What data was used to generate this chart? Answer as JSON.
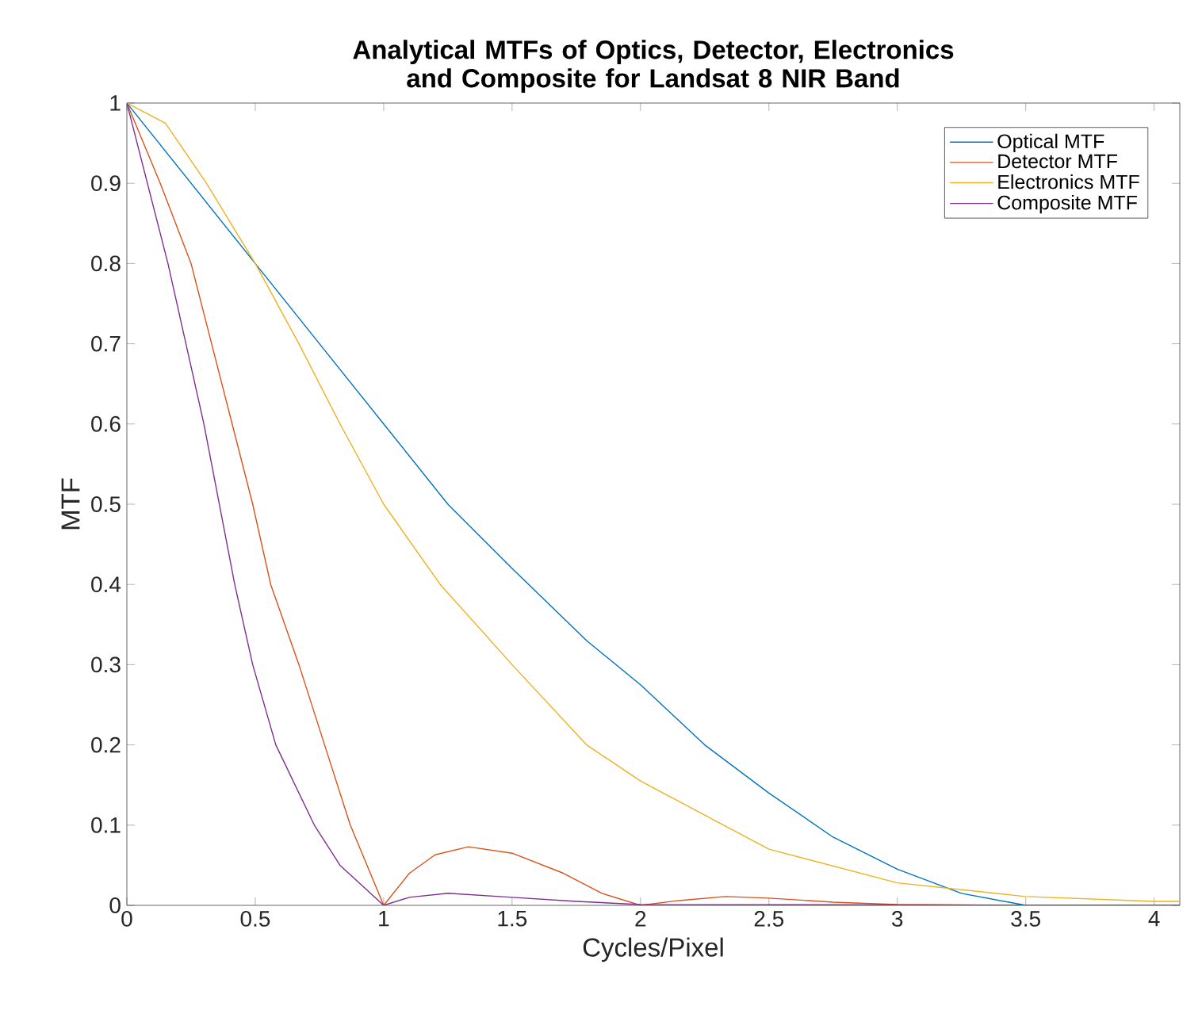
{
  "chart_data": {
    "type": "line",
    "title": "Analytical MTFs of Optics, Detector, Electronics and Composite for Landsat 8 NIR Band",
    "xlabel": "Cycles/Pixel",
    "ylabel": "MTF",
    "xlim": [
      0,
      4.1
    ],
    "ylim": [
      0,
      1
    ],
    "xticks": [
      0,
      0.5,
      1,
      1.5,
      2,
      2.5,
      3,
      3.5,
      4
    ],
    "yticks": [
      0,
      0.1,
      0.2,
      0.3,
      0.4,
      0.5,
      0.6,
      0.7,
      0.8,
      0.9,
      1
    ],
    "grid": false,
    "legend": "top right",
    "marker": "none",
    "line_style": "solid",
    "series": [
      {
        "name": "Optical MTF",
        "color": "#0072bd",
        "x": [
          0,
          0.25,
          0.5,
          0.75,
          1,
          1.25,
          1.5,
          1.79,
          2,
          2.25,
          2.5,
          2.75,
          3,
          3.25,
          3.5,
          4.1
        ],
        "values": [
          1,
          0.9,
          0.8,
          0.7,
          0.6,
          0.5,
          0.42,
          0.33,
          0.275,
          0.2,
          0.14,
          0.085,
          0.045,
          0.015,
          0,
          0
        ]
      },
      {
        "name": "Detector MTF",
        "color": "#d95319",
        "x": [
          0,
          0.13,
          0.25,
          0.33,
          0.41,
          0.49,
          0.56,
          0.67,
          0.77,
          0.87,
          1,
          1.1,
          1.2,
          1.33,
          1.5,
          1.7,
          1.85,
          2,
          2.15,
          2.33,
          2.5,
          2.75,
          3,
          3.5,
          4.1
        ],
        "values": [
          1,
          0.9,
          0.8,
          0.7,
          0.6,
          0.5,
          0.4,
          0.3,
          0.2,
          0.1,
          0,
          0.04,
          0.063,
          0.073,
          0.065,
          0.04,
          0.015,
          0,
          0.006,
          0.011,
          0.009,
          0.004,
          0.001,
          0,
          0
        ]
      },
      {
        "name": "Electronics MTF",
        "color": "#edb120",
        "x": [
          0,
          0.15,
          0.31,
          0.5,
          0.67,
          0.83,
          1,
          1.22,
          1.5,
          1.79,
          2,
          2.5,
          3,
          3.5,
          4,
          4.1
        ],
        "values": [
          1,
          0.975,
          0.9,
          0.8,
          0.7,
          0.6,
          0.5,
          0.4,
          0.3,
          0.2,
          0.155,
          0.07,
          0.028,
          0.011,
          0.005,
          0.005
        ]
      },
      {
        "name": "Composite MTF",
        "color": "#7e2f8e",
        "x": [
          0,
          0.08,
          0.16,
          0.23,
          0.3,
          0.36,
          0.42,
          0.49,
          0.58,
          0.73,
          0.83,
          1,
          1.1,
          1.25,
          1.5,
          1.75,
          2,
          4.1
        ],
        "values": [
          1,
          0.9,
          0.8,
          0.7,
          0.6,
          0.5,
          0.4,
          0.3,
          0.2,
          0.1,
          0.05,
          0,
          0.01,
          0.015,
          0.01,
          0.005,
          0.001,
          0
        ]
      }
    ]
  }
}
